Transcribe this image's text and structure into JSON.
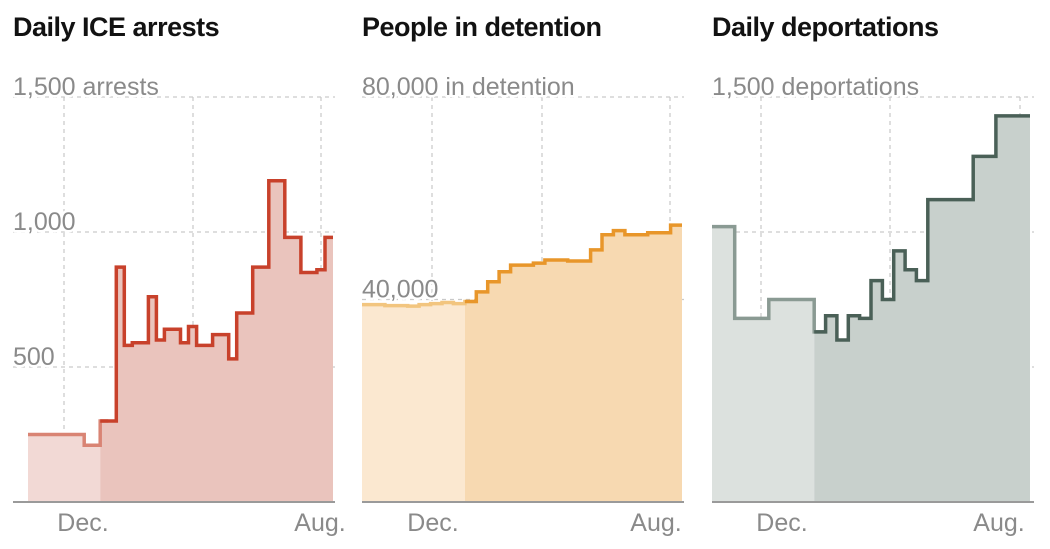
{
  "chart_data": [
    {
      "type": "area",
      "title": "Daily ICE arrests",
      "x_tick_labels": [
        "Dec.",
        "Aug."
      ],
      "y_tick_labels": [
        "1,500 arrests",
        "1,000",
        "500"
      ],
      "y_ticks": [
        1500,
        1000,
        500
      ],
      "ylim": [
        0,
        1500
      ],
      "grid": true,
      "step": true,
      "highlight_start_index": 9,
      "colors": {
        "line": "#c8412b",
        "line_light": "#d98474",
        "fill": "#eac4bd",
        "fill_light": "#f2d9d5"
      },
      "series": [
        {
          "x": [
            0,
            1,
            2,
            3,
            4,
            5,
            6,
            7,
            8,
            9,
            10,
            11,
            12,
            13,
            14,
            15,
            16,
            17,
            18,
            19,
            20,
            21,
            22,
            23,
            24,
            25,
            26,
            27,
            28,
            29,
            30,
            31,
            32,
            33,
            34,
            35,
            36,
            37
          ],
          "y": [
            250,
            250,
            250,
            250,
            250,
            250,
            250,
            210,
            210,
            300,
            300,
            870,
            580,
            590,
            590,
            760,
            600,
            640,
            640,
            590,
            650,
            580,
            580,
            620,
            620,
            530,
            700,
            700,
            870,
            870,
            1190,
            1190,
            980,
            980,
            850,
            850,
            860,
            980
          ]
        }
      ]
    },
    {
      "type": "area",
      "title": "People in detention",
      "x_tick_labels": [
        "Dec.",
        "Aug."
      ],
      "y_tick_labels": [
        "80,000 in detention",
        "40,000"
      ],
      "y_ticks": [
        80000,
        40000
      ],
      "ylim": [
        0,
        80000
      ],
      "grid": true,
      "step": true,
      "highlight_start_index": 9,
      "colors": {
        "line": "#e8962a",
        "line_light": "#f2c57f",
        "fill": "#f7d9b1",
        "fill_light": "#fbe8d0"
      },
      "series": [
        {
          "x": [
            0,
            1,
            2,
            3,
            4,
            5,
            6,
            7,
            8,
            9,
            10,
            11,
            12,
            13,
            14,
            15,
            16,
            17,
            18,
            19,
            20,
            21,
            22,
            23,
            24,
            25,
            26,
            27
          ],
          "y": [
            39000,
            39000,
            38800,
            38800,
            38700,
            39000,
            39200,
            39400,
            39200,
            39600,
            41500,
            43500,
            45500,
            46800,
            46800,
            47200,
            47800,
            47800,
            47600,
            47600,
            49800,
            52800,
            53600,
            52800,
            52800,
            53200,
            53200,
            54700
          ]
        }
      ]
    },
    {
      "type": "area",
      "title": "Daily deportations",
      "x_tick_labels": [
        "Dec.",
        "Aug."
      ],
      "y_tick_labels": [
        "1,500 deportations"
      ],
      "y_ticks": [
        1500,
        1000,
        500
      ],
      "ylim": [
        0,
        1500
      ],
      "grid": true,
      "step": true,
      "highlight_start_index": 9,
      "colors": {
        "line": "#4a6057",
        "line_light": "#8a9a93",
        "fill": "#c8d0cc",
        "fill_light": "#dce1de"
      },
      "series": [
        {
          "x": [
            0,
            1,
            2,
            3,
            4,
            5,
            6,
            7,
            8,
            9,
            10,
            11,
            12,
            13,
            14,
            15,
            16,
            17,
            18,
            19,
            20,
            21,
            22,
            23,
            24,
            25,
            26,
            27
          ],
          "y": [
            1020,
            1020,
            680,
            680,
            680,
            750,
            750,
            750,
            750,
            630,
            690,
            600,
            690,
            680,
            820,
            750,
            930,
            860,
            820,
            1120,
            1120,
            1120,
            1120,
            1280,
            1280,
            1430,
            1430,
            1430
          ]
        }
      ]
    }
  ]
}
